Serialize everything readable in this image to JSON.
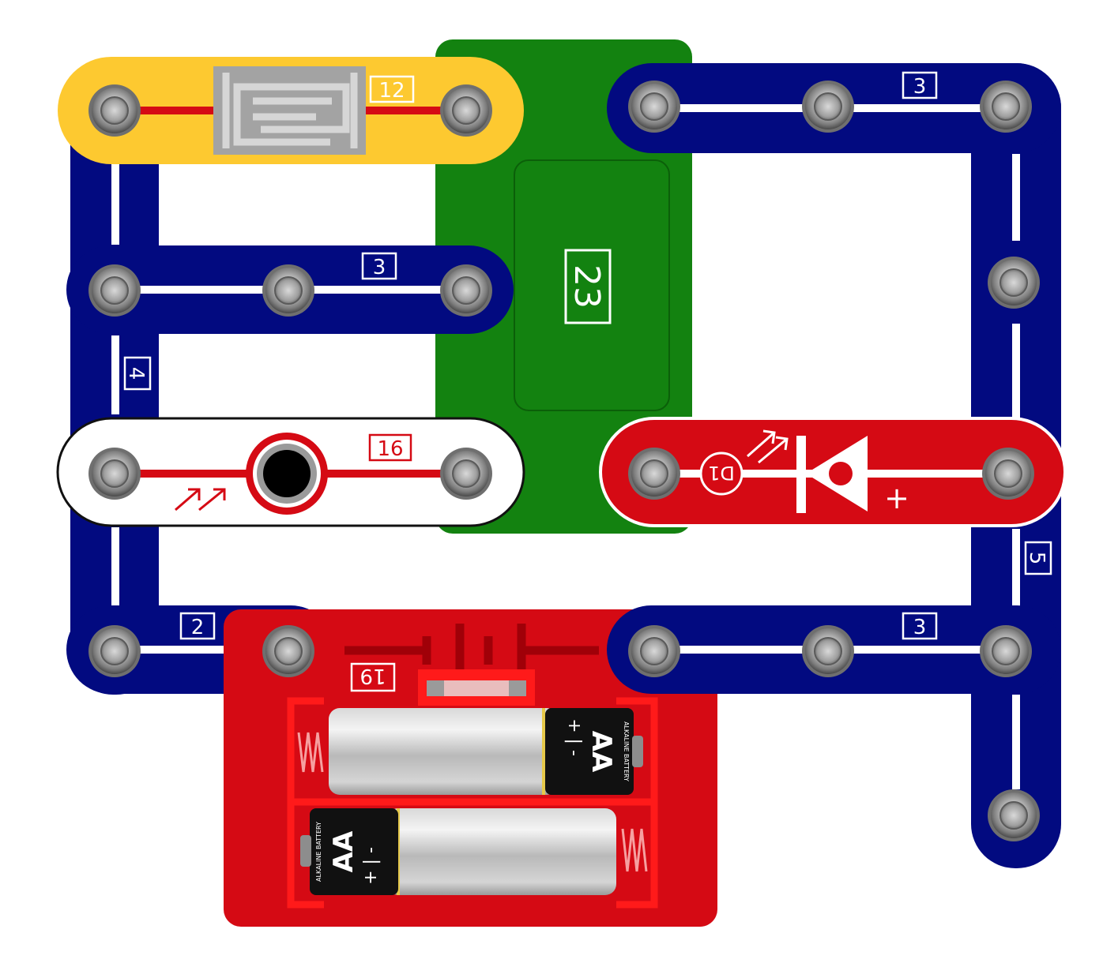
{
  "colors": {
    "blue_wire": "#020a80",
    "wire_line_white": "#ffffff",
    "green_board": "#138210",
    "yellow_part": "#fdc930",
    "red_part": "#d50a14",
    "snap_gray": "#8a8a8a",
    "black": "#000000"
  },
  "parts": {
    "sensor_12": {
      "label": "12",
      "icon": "touch-plate-sensor-icon"
    },
    "board_23": {
      "label": "23"
    },
    "wire_top_right": {
      "label": "3"
    },
    "wire_mid_left": {
      "label": "3"
    },
    "wire_left_vertical": {
      "label": "4"
    },
    "phototransistor_16": {
      "label": "16",
      "icon": "phototransistor-icon"
    },
    "led_d1": {
      "label": "D1",
      "plus": "+",
      "icon": "led-icon"
    },
    "wire_right_vertical": {
      "label": "5"
    },
    "wire_bottom_left": {
      "label": "2"
    },
    "wire_bottom_right": {
      "label": "3"
    },
    "battery_19": {
      "label": "19",
      "icon": "battery-symbol-icon",
      "cell_top": {
        "type": "AA",
        "sign": "+ | -",
        "brand": "ALKALINE BATTERY"
      },
      "cell_bottom": {
        "type": "AA",
        "sign": "+ | -",
        "brand": "ALKALINE BATTERY"
      }
    }
  }
}
